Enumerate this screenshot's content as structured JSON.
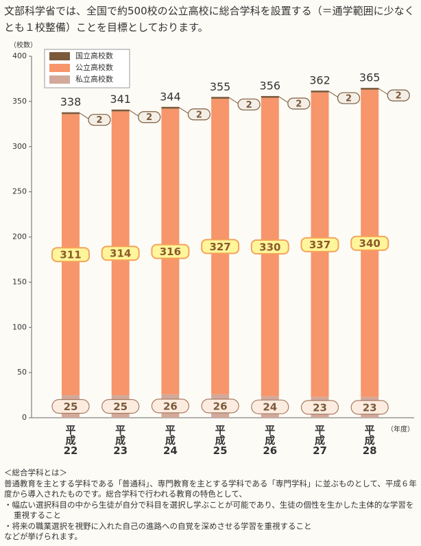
{
  "intro": "文部科学省では、全国で約500校の公立高校に総合学科を設置する（＝通学範囲に少なくとも１校整備）ことを目標としております。",
  "chart_data": {
    "type": "bar",
    "stacked": true,
    "y_unit_label": "（校数）",
    "x_unit_label": "（年度）",
    "categories": [
      "平成22",
      "平成23",
      "平成24",
      "平成25",
      "平成26",
      "平成27",
      "平成28"
    ],
    "series": [
      {
        "name": "国立高校数",
        "color": "#7b5a3c",
        "values": [
          2,
          2,
          2,
          2,
          2,
          2,
          2
        ]
      },
      {
        "name": "公立高校数",
        "color": "#f7956b",
        "values": [
          311,
          314,
          316,
          327,
          330,
          337,
          340
        ]
      },
      {
        "name": "私立高校数",
        "color": "#d2a99a",
        "values": [
          25,
          25,
          26,
          26,
          24,
          23,
          23
        ]
      }
    ],
    "totals": [
      338,
      341,
      344,
      355,
      356,
      362,
      365
    ],
    "ylim": [
      0,
      400
    ],
    "yticks": [
      0,
      50,
      100,
      150,
      200,
      250,
      300,
      350,
      400
    ],
    "grid": false
  },
  "notes": {
    "heading": "＜総合学科とは＞",
    "lines": [
      "普通教育を主とする学科である「普通科」、専門教育を主とする学科である「専門学科」に並ぶものとして、平成６年度から導入されたものです。総合学科で行われる教育の特色として、",
      "・幅広い選択科目の中から生徒が自分で科目を選択し学ぶことが可能であり、生徒の個性を生かした主体的な学習を重視すること",
      "・将来の職業選択を視野に入れた自己の進路への自覚を深めさせる学習を重視すること",
      "などが挙げられます。"
    ]
  }
}
